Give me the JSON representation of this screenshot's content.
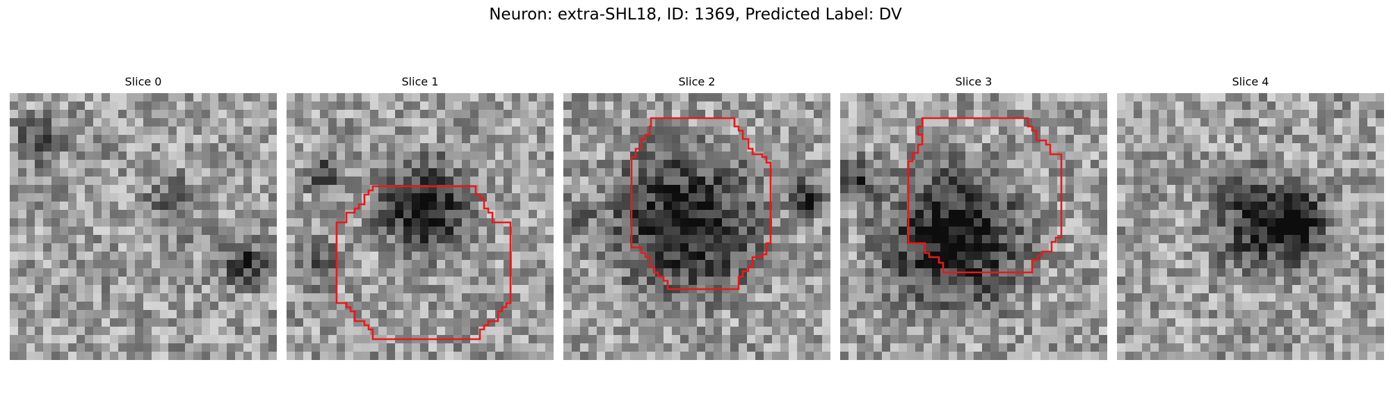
{
  "figure": {
    "title": "Neuron: extra-SHL18, ID: 1369, Predicted Label: DV"
  },
  "panels": [
    {
      "title": "Slice 0",
      "has_outline": false
    },
    {
      "title": "Slice 1",
      "has_outline": true
    },
    {
      "title": "Slice 2",
      "has_outline": true
    },
    {
      "title": "Slice 3",
      "has_outline": true
    },
    {
      "title": "Slice 4",
      "has_outline": false
    }
  ],
  "colors": {
    "outline": "#e8191a"
  }
}
